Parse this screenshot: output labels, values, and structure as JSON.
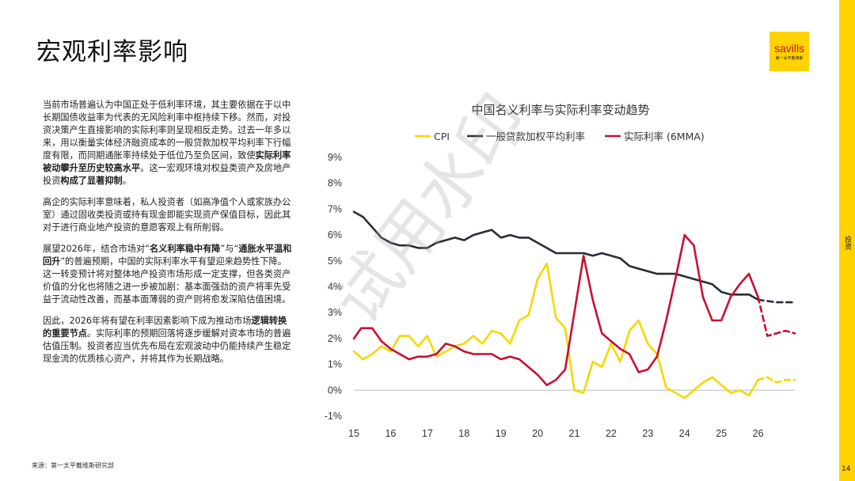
{
  "page": {
    "title": "宏观利率影响",
    "side_label": "投资",
    "page_number": "14",
    "source": "来源：第一太平戴维斯研究部",
    "watermark": "试用水印"
  },
  "logo": {
    "word": "savills",
    "sub": "第一太平戴维斯"
  },
  "text": {
    "p1": [
      {
        "t": "当前市场普遍认为中国正处于低利率环境，其主要依据在于以中长期国债收益率为代表的无风险利率中枢持续下移。然而，对投资决策产生直接影响的实际利率则呈现相反走势。过去一年多以来，用以衡量实体经济融资成本的一般贷款加权平均利率下行幅度有限，而同期通胀率持续处于低位乃至负区间，致使",
        "b": false
      },
      {
        "t": "实际利率被动攀升至历史较高水平",
        "b": true
      },
      {
        "t": "。这一宏观环境对权益类资产及房地产投资",
        "b": false
      },
      {
        "t": "构成了显著抑制",
        "b": true
      },
      {
        "t": "。",
        "b": false
      }
    ],
    "p2": [
      {
        "t": "高企的实际利率意味着，私人投资者（如高净值个人或家族办公室）通过固收类投资或持有现金即能实现资产保值目标，因此其对于进行商业地产投资的意愿客观上有所削弱。",
        "b": false
      }
    ],
    "p3": [
      {
        "t": "展望2026年，结合市场对“",
        "b": false
      },
      {
        "t": "名义利率稳中有降",
        "b": true
      },
      {
        "t": "”与“",
        "b": false
      },
      {
        "t": "通胀水平温和回升",
        "b": true
      },
      {
        "t": "”的普遍预期，中国的实际利率水平有望迎来趋势性下降。这一转变预计将对整体地产投资市场形成一定支撑，但各类资产价值的分化也将随之进一步被加剧：基本面强劲的资产将率先受益于流动性改善，而基本面薄弱的资产则将愈发深陷估值困境。",
        "b": false
      }
    ],
    "p4": [
      {
        "t": "因此，2026年将有望在利率因素影响下成为推动市场",
        "b": false
      },
      {
        "t": "逻辑转换的重要节点",
        "b": true
      },
      {
        "t": "。实际利率的预期回落将逐步缓解对资本市场的普遍估值压制。投资者应当优先布局在宏观波动中仍能持续产生稳定现金流的优质核心资产，并将其作为长期战略。",
        "b": false
      }
    ]
  },
  "chart_data": {
    "type": "line",
    "title": "中国名义利率与实际利率变动趋势",
    "xlabel": "",
    "ylabel": "",
    "x_ticks": [
      "15",
      "16",
      "17",
      "18",
      "19",
      "20",
      "21",
      "22",
      "23",
      "24",
      "25",
      "26"
    ],
    "y_ticks": [
      "9%",
      "8%",
      "7%",
      "6%",
      "5%",
      "4%",
      "3%",
      "2%",
      "1%",
      "0%",
      "-1%"
    ],
    "xlim": [
      2015.0,
      2027.0
    ],
    "ylim": [
      -1,
      9
    ],
    "grid": false,
    "legend_position": "top",
    "series": [
      {
        "name": "CPI",
        "color": "#f5d800",
        "style": "solid",
        "points": [
          [
            2015.0,
            1.5
          ],
          [
            2015.25,
            1.2
          ],
          [
            2015.5,
            1.4
          ],
          [
            2015.75,
            1.7
          ],
          [
            2016.0,
            1.5
          ],
          [
            2016.25,
            2.1
          ],
          [
            2016.5,
            2.1
          ],
          [
            2016.75,
            1.7
          ],
          [
            2017.0,
            2.1
          ],
          [
            2017.25,
            1.3
          ],
          [
            2017.5,
            1.5
          ],
          [
            2017.75,
            1.7
          ],
          [
            2018.0,
            1.8
          ],
          [
            2018.25,
            2.1
          ],
          [
            2018.5,
            1.8
          ],
          [
            2018.75,
            2.3
          ],
          [
            2019.0,
            2.2
          ],
          [
            2019.25,
            1.8
          ],
          [
            2019.5,
            2.7
          ],
          [
            2019.75,
            2.9
          ],
          [
            2020.0,
            4.3
          ],
          [
            2020.25,
            4.9
          ],
          [
            2020.5,
            2.8
          ],
          [
            2020.75,
            2.4
          ],
          [
            2021.0,
            0.0
          ],
          [
            2021.25,
            -0.1
          ],
          [
            2021.5,
            1.1
          ],
          [
            2021.75,
            0.9
          ],
          [
            2022.0,
            1.8
          ],
          [
            2022.25,
            1.1
          ],
          [
            2022.5,
            2.3
          ],
          [
            2022.75,
            2.7
          ],
          [
            2023.0,
            1.8
          ],
          [
            2023.25,
            1.4
          ],
          [
            2023.5,
            0.1
          ],
          [
            2023.75,
            -0.1
          ],
          [
            2024.0,
            -0.3
          ],
          [
            2024.25,
            0.0
          ],
          [
            2024.5,
            0.3
          ],
          [
            2024.75,
            0.5
          ],
          [
            2025.0,
            0.2
          ],
          [
            2025.25,
            -0.1
          ],
          [
            2025.5,
            0.0
          ],
          [
            2025.75,
            -0.2
          ],
          [
            2026.0,
            0.4
          ]
        ]
      },
      {
        "name": "CPI-forecast",
        "color": "#f5d800",
        "style": "dashed",
        "points": [
          [
            2026.0,
            0.4
          ],
          [
            2026.25,
            0.5
          ],
          [
            2026.5,
            0.3
          ],
          [
            2026.75,
            0.4
          ],
          [
            2027.0,
            0.4
          ]
        ]
      },
      {
        "name": "一般贷款加权平均利率",
        "color": "#2a2b3a",
        "style": "solid",
        "points": [
          [
            2015.0,
            6.9
          ],
          [
            2015.25,
            6.7
          ],
          [
            2015.5,
            6.3
          ],
          [
            2015.75,
            5.9
          ],
          [
            2016.0,
            5.7
          ],
          [
            2016.25,
            5.6
          ],
          [
            2016.5,
            5.6
          ],
          [
            2016.75,
            5.5
          ],
          [
            2017.0,
            5.5
          ],
          [
            2017.25,
            5.7
          ],
          [
            2017.5,
            5.8
          ],
          [
            2017.75,
            5.9
          ],
          [
            2018.0,
            5.8
          ],
          [
            2018.25,
            6.0
          ],
          [
            2018.5,
            6.1
          ],
          [
            2018.75,
            6.2
          ],
          [
            2019.0,
            5.9
          ],
          [
            2019.25,
            6.0
          ],
          [
            2019.5,
            5.9
          ],
          [
            2019.75,
            5.9
          ],
          [
            2020.0,
            5.7
          ],
          [
            2020.25,
            5.5
          ],
          [
            2020.5,
            5.3
          ],
          [
            2020.75,
            5.3
          ],
          [
            2021.0,
            5.3
          ],
          [
            2021.25,
            5.3
          ],
          [
            2021.5,
            5.2
          ],
          [
            2021.75,
            5.3
          ],
          [
            2022.0,
            5.2
          ],
          [
            2022.25,
            5.1
          ],
          [
            2022.5,
            4.8
          ],
          [
            2022.75,
            4.7
          ],
          [
            2023.0,
            4.6
          ],
          [
            2023.25,
            4.5
          ],
          [
            2023.5,
            4.5
          ],
          [
            2023.75,
            4.5
          ],
          [
            2024.0,
            4.4
          ],
          [
            2024.25,
            4.3
          ],
          [
            2024.5,
            4.2
          ],
          [
            2024.75,
            4.1
          ],
          [
            2025.0,
            3.8
          ],
          [
            2025.25,
            3.7
          ],
          [
            2025.5,
            3.7
          ],
          [
            2025.75,
            3.7
          ],
          [
            2026.0,
            3.5
          ]
        ]
      },
      {
        "name": "一般贷款加权平均利率-forecast",
        "color": "#2a2b3a",
        "style": "dashed",
        "points": [
          [
            2026.0,
            3.5
          ],
          [
            2026.5,
            3.4
          ],
          [
            2027.0,
            3.4
          ]
        ]
      },
      {
        "name": "实际利率 (6MMA)",
        "color": "#c8102e",
        "style": "solid",
        "points": [
          [
            2015.0,
            2.0
          ],
          [
            2015.2,
            2.4
          ],
          [
            2015.5,
            2.4
          ],
          [
            2015.75,
            1.9
          ],
          [
            2016.0,
            1.6
          ],
          [
            2016.25,
            1.4
          ],
          [
            2016.5,
            1.2
          ],
          [
            2016.75,
            1.3
          ],
          [
            2017.0,
            1.3
          ],
          [
            2017.25,
            1.4
          ],
          [
            2017.5,
            1.8
          ],
          [
            2017.75,
            1.7
          ],
          [
            2018.0,
            1.5
          ],
          [
            2018.25,
            1.4
          ],
          [
            2018.5,
            1.4
          ],
          [
            2018.75,
            1.4
          ],
          [
            2019.0,
            1.2
          ],
          [
            2019.25,
            1.3
          ],
          [
            2019.5,
            1.2
          ],
          [
            2019.75,
            0.9
          ],
          [
            2020.0,
            0.6
          ],
          [
            2020.25,
            0.2
          ],
          [
            2020.5,
            0.4
          ],
          [
            2020.75,
            0.8
          ],
          [
            2021.0,
            3.0
          ],
          [
            2021.25,
            5.2
          ],
          [
            2021.5,
            3.5
          ],
          [
            2021.75,
            2.2
          ],
          [
            2022.0,
            1.9
          ],
          [
            2022.25,
            1.6
          ],
          [
            2022.5,
            1.4
          ],
          [
            2022.75,
            0.7
          ],
          [
            2023.0,
            0.8
          ],
          [
            2023.25,
            1.3
          ],
          [
            2023.5,
            2.7
          ],
          [
            2023.75,
            4.3
          ],
          [
            2024.0,
            6.0
          ],
          [
            2024.25,
            5.6
          ],
          [
            2024.5,
            3.6
          ],
          [
            2024.75,
            2.7
          ],
          [
            2025.0,
            2.7
          ],
          [
            2025.25,
            3.6
          ],
          [
            2025.5,
            4.1
          ],
          [
            2025.75,
            4.5
          ],
          [
            2026.0,
            3.6
          ]
        ]
      },
      {
        "name": "实际利率 (6MMA)-forecast",
        "color": "#c8102e",
        "style": "dashed",
        "points": [
          [
            2026.0,
            3.6
          ],
          [
            2026.25,
            2.1
          ],
          [
            2026.5,
            2.2
          ],
          [
            2026.75,
            2.3
          ],
          [
            2027.0,
            2.2
          ]
        ]
      }
    ],
    "legend": [
      {
        "label": "CPI",
        "color": "#f5d800"
      },
      {
        "label": "一般贷款加权平均利率",
        "color": "#2a2b3a"
      },
      {
        "label": "实际利率 (6MMA)",
        "color": "#c8102e"
      }
    ]
  }
}
